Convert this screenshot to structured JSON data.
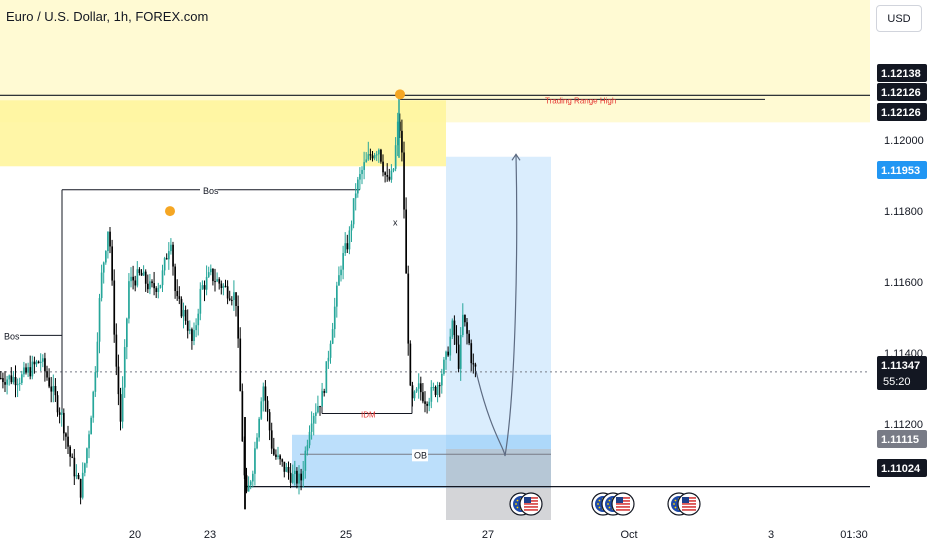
{
  "header": {
    "title": "Euro / U.S. Dollar, 1h, FOREX.com",
    "currency_button": "USD"
  },
  "chart_data": {
    "type": "candlestick",
    "title": "Euro / U.S. Dollar, 1h, FOREX.com",
    "xlabel": "",
    "ylabel": "",
    "ylim": [
      1.1093,
      1.1231
    ],
    "grid": false,
    "colors": {
      "up": "#26a69a",
      "down": "#000000",
      "supply_zone": "#fff59d",
      "forecast_box": "#bbdefb",
      "ob_box": "#90caf9",
      "gray_box": "#b0b3b8",
      "range_high_label": "#e53935",
      "idm_label": "#e53935",
      "swing_marker": "#f5a623",
      "badge_dark": "#131722",
      "badge_gray": "#787b86",
      "badge_blue": "#2196f3"
    },
    "x_ticks": [
      "20",
      "23",
      "25",
      "27",
      "Oct",
      "3",
      "01:30"
    ],
    "y_ticks": [
      "1.12000",
      "1.11800",
      "1.11600",
      "1.11400",
      "1.11200"
    ],
    "price_badges": [
      {
        "label": "1.12138",
        "style": "dark"
      },
      {
        "label": "1.12126",
        "style": "dark"
      },
      {
        "label": "1.12126",
        "style": "dark"
      },
      {
        "label": "1.11953",
        "style": "blue"
      },
      {
        "label": "1.11347",
        "style": "dark",
        "sub": "55:20"
      },
      {
        "label": "1.11115",
        "style": "gray"
      },
      {
        "label": "1.11024",
        "style": "dark"
      }
    ],
    "annotations": {
      "bos_1": "Bos",
      "bos_2": "Bos",
      "range_high": "Trading Range High",
      "idm": "IDM",
      "ob": "OB",
      "x_mark": "x"
    },
    "key_levels": {
      "trading_range_high": 1.12126,
      "last_price": 1.11347,
      "ob_level": 1.11115,
      "support": 1.11024,
      "target": 1.11953
    },
    "events": [
      {
        "icons": [
          "eu-flag-icon",
          "us-flag-icon"
        ]
      },
      {
        "icons": [
          "eu-flag-icon",
          "eu-flag-icon",
          "us-flag-icon"
        ]
      },
      {
        "icons": [
          "eu-flag-icon",
          "us-flag-icon"
        ]
      }
    ],
    "candle_series": {
      "start": 1.1133,
      "points": [
        [
          20,
          1.1133
        ],
        [
          40,
          1.1138
        ],
        [
          60,
          1.1123
        ],
        [
          62,
          1.1121
        ],
        [
          70,
          1.111
        ],
        [
          80,
          1.1101
        ],
        [
          86,
          1.1113
        ],
        [
          93,
          1.113
        ],
        [
          100,
          1.116
        ],
        [
          108,
          1.1177
        ],
        [
          115,
          1.1138
        ],
        [
          120,
          1.112
        ],
        [
          128,
          1.116
        ],
        [
          140,
          1.1162
        ],
        [
          150,
          1.1158
        ],
        [
          160,
          1.116
        ],
        [
          170,
          1.1173
        ],
        [
          175,
          1.1155
        ],
        [
          185,
          1.115
        ],
        [
          192,
          1.1142
        ],
        [
          200,
          1.1158
        ],
        [
          210,
          1.1162
        ],
        [
          225,
          1.1158
        ],
        [
          235,
          1.1156
        ],
        [
          242,
          1.1113
        ],
        [
          245,
          1.1098
        ],
        [
          252,
          1.1108
        ],
        [
          262,
          1.1132
        ],
        [
          272,
          1.1112
        ],
        [
          282,
          1.1108
        ],
        [
          292,
          1.1105
        ],
        [
          300,
          1.1104
        ],
        [
          310,
          1.1122
        ],
        [
          322,
          1.1128
        ],
        [
          330,
          1.1145
        ],
        [
          340,
          1.1165
        ],
        [
          348,
          1.1172
        ],
        [
          355,
          1.1186
        ],
        [
          362,
          1.1192
        ],
        [
          370,
          1.1196
        ],
        [
          378,
          1.1198
        ],
        [
          386,
          1.1188
        ],
        [
          392,
          1.119
        ],
        [
          398,
          1.1207
        ],
        [
          402,
          1.1192
        ],
        [
          406,
          1.1155
        ],
        [
          410,
          1.1125
        ],
        [
          418,
          1.113
        ],
        [
          425,
          1.1127
        ],
        [
          435,
          1.113
        ],
        [
          445,
          1.1138
        ],
        [
          452,
          1.1148
        ],
        [
          458,
          1.1137
        ],
        [
          462,
          1.115
        ],
        [
          468,
          1.1143
        ],
        [
          472,
          1.1136
        ],
        [
          476,
          1.1135
        ]
      ]
    },
    "forecast_path": [
      [
        476,
        1.1135
      ],
      [
        490,
        1.1118
      ],
      [
        505,
        1.1111
      ],
      [
        516,
        1.113
      ],
      [
        518,
        1.117
      ],
      [
        516,
        1.1196
      ]
    ]
  }
}
